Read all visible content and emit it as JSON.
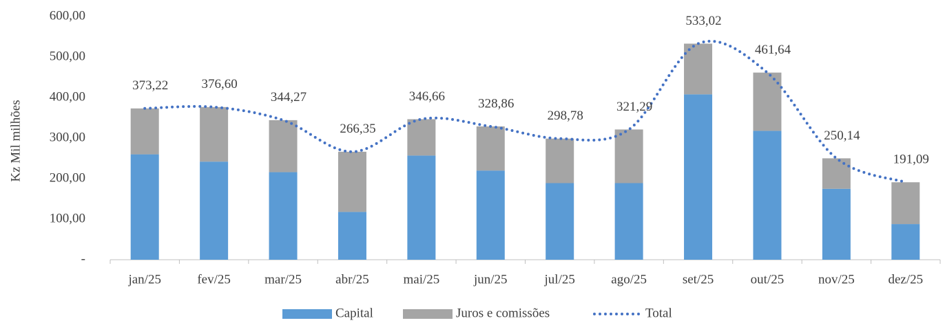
{
  "chart_data": {
    "type": "bar",
    "y_label": "Kz Mil milhões",
    "categories": [
      "jan/25",
      "fev/25",
      "mar/25",
      "abr/25",
      "mai/25",
      "jun/25",
      "jul/25",
      "ago/25",
      "set/25",
      "out/25",
      "nov/25",
      "dez/25"
    ],
    "series": [
      {
        "name": "Capital",
        "color": "#5b9bd5",
        "type": "bar",
        "values": [
          260,
          242,
          216,
          118,
          257,
          220,
          189,
          189,
          408,
          318,
          175,
          88
        ]
      },
      {
        "name": "Juros e comissões",
        "color": "#a5a5a5",
        "type": "bar",
        "values": [
          113.22,
          134.6,
          128.27,
          148.35,
          89.66,
          108.86,
          109.78,
          132.29,
          125.02,
          143.64,
          75.14,
          103.09
        ]
      },
      {
        "name": "Total",
        "color": "#4472c4",
        "type": "line",
        "values": [
          373.22,
          376.6,
          344.27,
          266.35,
          346.66,
          328.86,
          298.78,
          321.29,
          533.02,
          461.64,
          250.14,
          191.09
        ],
        "value_labels": [
          "373,22",
          "376,60",
          "344,27",
          "266,35",
          "346,66",
          "328,86",
          "298,78",
          "321,29",
          "533,02",
          "461,64",
          "250,14",
          "191,09"
        ]
      }
    ],
    "stacked": true,
    "ylim": [
      0,
      600
    ],
    "yticks": [
      {
        "value": 0,
        "label": "-"
      },
      {
        "value": 100,
        "label": "100,00"
      },
      {
        "value": 200,
        "label": "200,00"
      },
      {
        "value": 300,
        "label": "300,00"
      },
      {
        "value": 400,
        "label": "400,00"
      },
      {
        "value": 500,
        "label": "500,00"
      },
      {
        "value": 600,
        "label": "600,00"
      }
    ],
    "grid": false,
    "legend": "bottom"
  }
}
